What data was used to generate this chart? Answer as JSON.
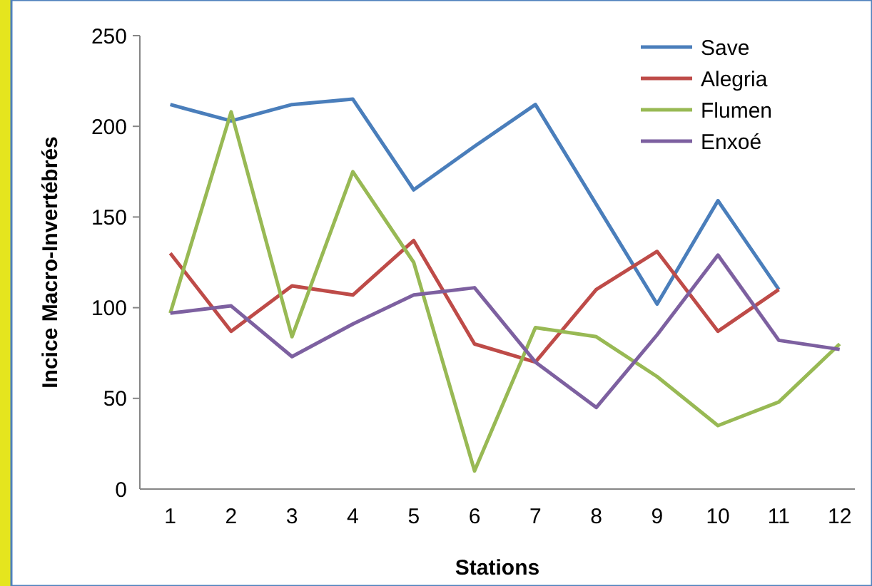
{
  "chart_data": {
    "type": "line",
    "xlabel": "Stations",
    "ylabel": "Incice Macro-Invertébrés",
    "x": [
      1,
      2,
      3,
      4,
      5,
      6,
      7,
      8,
      9,
      10,
      11,
      12
    ],
    "xlim": [
      0.5,
      12.25
    ],
    "xticks": [
      1,
      2,
      3,
      4,
      5,
      6,
      7,
      8,
      9,
      10,
      11,
      12
    ],
    "series": [
      {
        "name": "Save",
        "color": "#4a7ebb",
        "values": [
          212,
          203,
          212,
          215,
          165,
          189,
          212,
          157,
          102,
          159,
          110,
          null
        ]
      },
      {
        "name": "Alegria",
        "color": "#be4b48",
        "values": [
          130,
          87,
          112,
          107,
          137,
          80,
          70,
          110,
          131,
          87,
          110,
          null
        ]
      },
      {
        "name": "Flumen",
        "color": "#98b954",
        "values": [
          97,
          208,
          84,
          175,
          125,
          10,
          89,
          84,
          62,
          35,
          48,
          80
        ]
      },
      {
        "name": "Enxoé",
        "color": "#7d60a0",
        "values": [
          97,
          101,
          73,
          91,
          107,
          111,
          70,
          45,
          85,
          129,
          82,
          77
        ]
      }
    ],
    "ylim": [
      0,
      250
    ],
    "yticks": [
      0,
      50,
      100,
      150,
      200,
      250
    ],
    "grid": false,
    "legend": "top right",
    "marker": "none",
    "line_style": "solid"
  }
}
